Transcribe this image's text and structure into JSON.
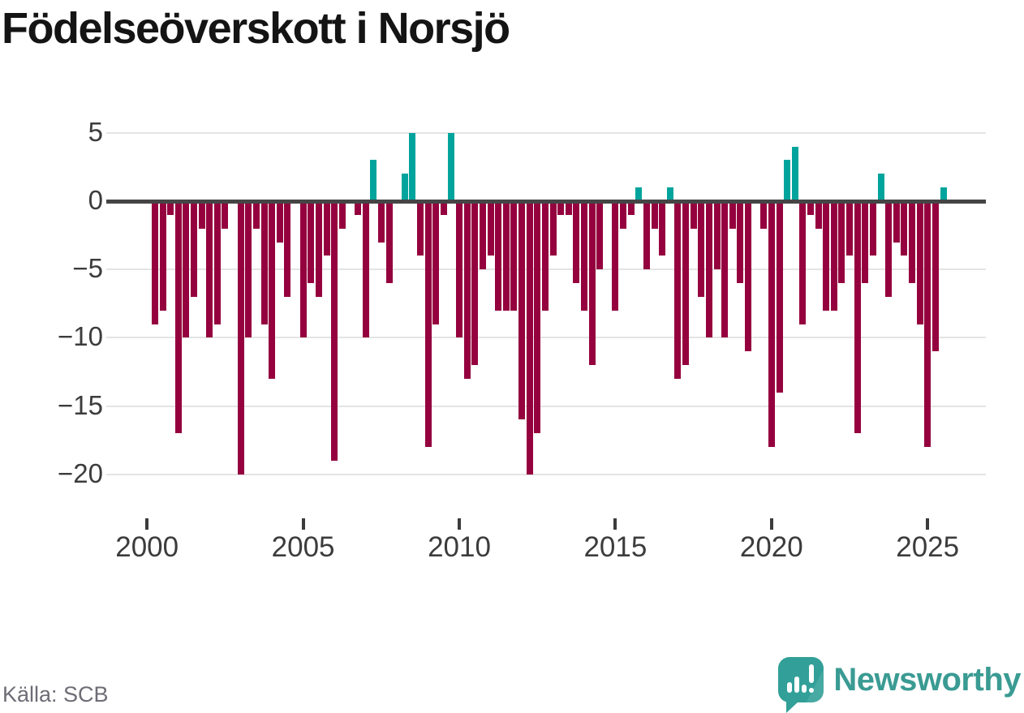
{
  "branding": {
    "wordmark": "Newsworthy"
  },
  "footer": {
    "source": "Källa: SCB"
  },
  "chart_data": {
    "type": "bar",
    "title": "Födelseöverskott i Norsjö",
    "source": "Källa: SCB",
    "frequency": "quarterly",
    "x_start": "2000-Q1",
    "x_end": "2025-Q2",
    "series": [
      {
        "name": "Födelseöverskott",
        "values": [
          -9,
          -8,
          -1,
          -17,
          -10,
          -7,
          -2,
          -10,
          -9,
          -2,
          0,
          -20,
          -10,
          -2,
          -9,
          -13,
          -3,
          -7,
          0,
          -10,
          -6,
          -7,
          -4,
          -19,
          -2,
          0,
          -1,
          -10,
          3,
          -3,
          -6,
          0,
          2,
          5,
          -4,
          -18,
          -9,
          -1,
          5,
          -10,
          -13,
          -12,
          -5,
          -4,
          -8,
          -8,
          -8,
          -16,
          -20,
          -17,
          -8,
          -4,
          -1,
          -1,
          -6,
          -8,
          -12,
          -5,
          0,
          -8,
          -2,
          -1,
          1,
          -5,
          -2,
          -4,
          1,
          -13,
          -12,
          -2,
          -7,
          -10,
          -5,
          -10,
          -2,
          -6,
          -11,
          0,
          -2,
          -18,
          -14,
          3,
          4,
          -9,
          -1,
          -2,
          -8,
          -8,
          -6,
          -4,
          -17,
          -6,
          -4,
          2,
          -7,
          -3,
          -4,
          -6,
          -9,
          -18,
          -11,
          1
        ]
      }
    ],
    "x_ticks": [
      "2000",
      "2005",
      "2010",
      "2015",
      "2020",
      "2025"
    ],
    "y_ticks": [
      5,
      0,
      -5,
      -10,
      -15,
      -20
    ],
    "ylim": [
      -20,
      5
    ],
    "grid": true,
    "legend": false,
    "colors": {
      "positive": "#00a49c",
      "negative": "#95013e",
      "gridline": "#e4e4e4",
      "zero_line": "#454545",
      "axis_text": "#3c3c3c",
      "source_text": "#6d6d76",
      "brand_teal": "#32a098"
    }
  }
}
